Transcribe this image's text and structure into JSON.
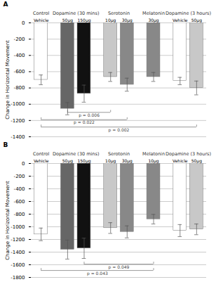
{
  "chart_data": [
    {
      "type": "bar",
      "title": "A",
      "ylabel": "Change in Horizontal Movement",
      "categories": [
        "Vehicle",
        "50µg",
        "150µg",
        "10µg",
        "30µg",
        "30µg",
        "Vehicle",
        "50µg"
      ],
      "groups": [
        "Control",
        "Dopamine (30 mins)",
        "Dopamine (30 mins)",
        "Serotonin",
        "Serotonin",
        "Melatonin",
        "Dopamine (3 hours)",
        "Dopamine (3 hours)"
      ],
      "values": [
        -700,
        -1055,
        -870,
        -665,
        -760,
        -665,
        -715,
        -800
      ],
      "errors": [
        60,
        75,
        105,
        55,
        80,
        55,
        45,
        85
      ],
      "colors": [
        "#ffffff",
        "#666666",
        "#111111",
        "#c8c8c8",
        "#888888",
        "#888888",
        "#ffffff",
        "#c8c8c8"
      ],
      "ylim": [
        -1400,
        0
      ],
      "yticks": [
        0,
        -200,
        -400,
        -600,
        -800,
        -1000,
        -1200,
        -1400
      ],
      "grid": true,
      "annotations": [
        {
          "text": "p = 0.006",
          "from": 1,
          "to": 3,
          "y": -1100
        },
        {
          "text": "p = 0.022",
          "from": 0,
          "to": 4,
          "y": -1190
        },
        {
          "text": "p = 0.002",
          "from": 0,
          "to": 7,
          "y": -1280
        }
      ]
    },
    {
      "type": "bar",
      "title": "B",
      "ylabel": "Change in Horizontal Movement",
      "categories": [
        "Vehicle",
        "50µg",
        "150µg",
        "10µg",
        "30µg",
        "10µg",
        "Vehicle",
        "50µg"
      ],
      "groups": [
        "Control",
        "Dopamine (30 mins)",
        "Dopamine (30 mins)",
        "Serotonin",
        "Serotonin",
        "Melatonin",
        "Dopamine (3 hours)",
        "Dopamine (3 hours)"
      ],
      "values": [
        -1120,
        -1360,
        -1340,
        -1020,
        -1080,
        -880,
        -1060,
        -1040
      ],
      "errors": [
        100,
        150,
        160,
        85,
        95,
        75,
        95,
        85
      ],
      "colors": [
        "#ffffff",
        "#666666",
        "#111111",
        "#c8c8c8",
        "#888888",
        "#888888",
        "#ffffff",
        "#c8c8c8"
      ],
      "ylim": [
        -1800,
        0
      ],
      "yticks": [
        0,
        -200,
        -400,
        -600,
        -800,
        -1000,
        -1200,
        -1400,
        -1600,
        -1800
      ],
      "grid": true,
      "annotations": [
        {
          "text": "p = 0.049",
          "from": 2,
          "to": 5,
          "y": -1590
        },
        {
          "text": "p = 0.043",
          "from": 0,
          "to": 5,
          "y": -1690
        }
      ]
    }
  ]
}
